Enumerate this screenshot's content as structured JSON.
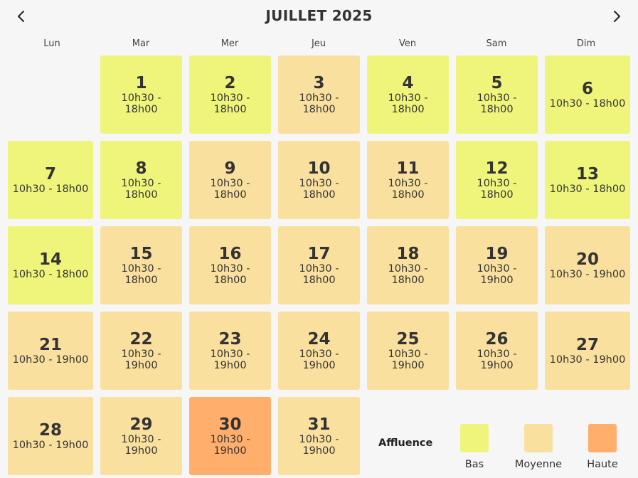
{
  "header": {
    "title": "JUILLET 2025",
    "prev_icon": "chevron-left-icon",
    "next_icon": "chevron-right-icon"
  },
  "weekdays": [
    "Lun",
    "Mar",
    "Mer",
    "Jeu",
    "Ven",
    "Sam",
    "Dim"
  ],
  "days": [
    {
      "day": "1",
      "hours": "10h30 - 18h00",
      "level": "bas"
    },
    {
      "day": "2",
      "hours": "10h30 - 18h00",
      "level": "bas"
    },
    {
      "day": "3",
      "hours": "10h30 - 18h00",
      "level": "moyenne"
    },
    {
      "day": "4",
      "hours": "10h30 - 18h00",
      "level": "bas"
    },
    {
      "day": "5",
      "hours": "10h30 - 18h00",
      "level": "bas"
    },
    {
      "day": "6",
      "hours": "10h30 - 18h00",
      "level": "bas"
    },
    {
      "day": "7",
      "hours": "10h30 - 18h00",
      "level": "bas"
    },
    {
      "day": "8",
      "hours": "10h30 - 18h00",
      "level": "bas"
    },
    {
      "day": "9",
      "hours": "10h30 - 18h00",
      "level": "moyenne"
    },
    {
      "day": "10",
      "hours": "10h30 - 18h00",
      "level": "moyenne"
    },
    {
      "day": "11",
      "hours": "10h30 - 18h00",
      "level": "moyenne"
    },
    {
      "day": "12",
      "hours": "10h30 - 18h00",
      "level": "bas"
    },
    {
      "day": "13",
      "hours": "10h30 - 18h00",
      "level": "bas"
    },
    {
      "day": "14",
      "hours": "10h30 - 18h00",
      "level": "bas"
    },
    {
      "day": "15",
      "hours": "10h30 - 18h00",
      "level": "moyenne"
    },
    {
      "day": "16",
      "hours": "10h30 - 18h00",
      "level": "moyenne"
    },
    {
      "day": "17",
      "hours": "10h30 - 18h00",
      "level": "moyenne"
    },
    {
      "day": "18",
      "hours": "10h30 - 18h00",
      "level": "moyenne"
    },
    {
      "day": "19",
      "hours": "10h30 - 19h00",
      "level": "moyenne"
    },
    {
      "day": "20",
      "hours": "10h30 - 19h00",
      "level": "moyenne"
    },
    {
      "day": "21",
      "hours": "10h30 - 19h00",
      "level": "moyenne"
    },
    {
      "day": "22",
      "hours": "10h30 - 19h00",
      "level": "moyenne"
    },
    {
      "day": "23",
      "hours": "10h30 - 19h00",
      "level": "moyenne"
    },
    {
      "day": "24",
      "hours": "10h30 - 19h00",
      "level": "moyenne"
    },
    {
      "day": "25",
      "hours": "10h30 - 19h00",
      "level": "moyenne"
    },
    {
      "day": "26",
      "hours": "10h30 - 19h00",
      "level": "moyenne"
    },
    {
      "day": "27",
      "hours": "10h30 - 19h00",
      "level": "moyenne"
    },
    {
      "day": "28",
      "hours": "10h30 - 19h00",
      "level": "moyenne"
    },
    {
      "day": "29",
      "hours": "10h30 - 19h00",
      "level": "moyenne"
    },
    {
      "day": "30",
      "hours": "10h30 - 19h00",
      "level": "haute"
    },
    {
      "day": "31",
      "hours": "10h30 - 19h00",
      "level": "moyenne"
    }
  ],
  "legend": {
    "title": "Affluence",
    "items": [
      {
        "key": "bas",
        "label": "Bas",
        "color": "#eff57b"
      },
      {
        "key": "moyenne",
        "label": "Moyenne",
        "color": "#fae09e"
      },
      {
        "key": "haute",
        "label": "Haute",
        "color": "#ffae6b"
      }
    ]
  }
}
